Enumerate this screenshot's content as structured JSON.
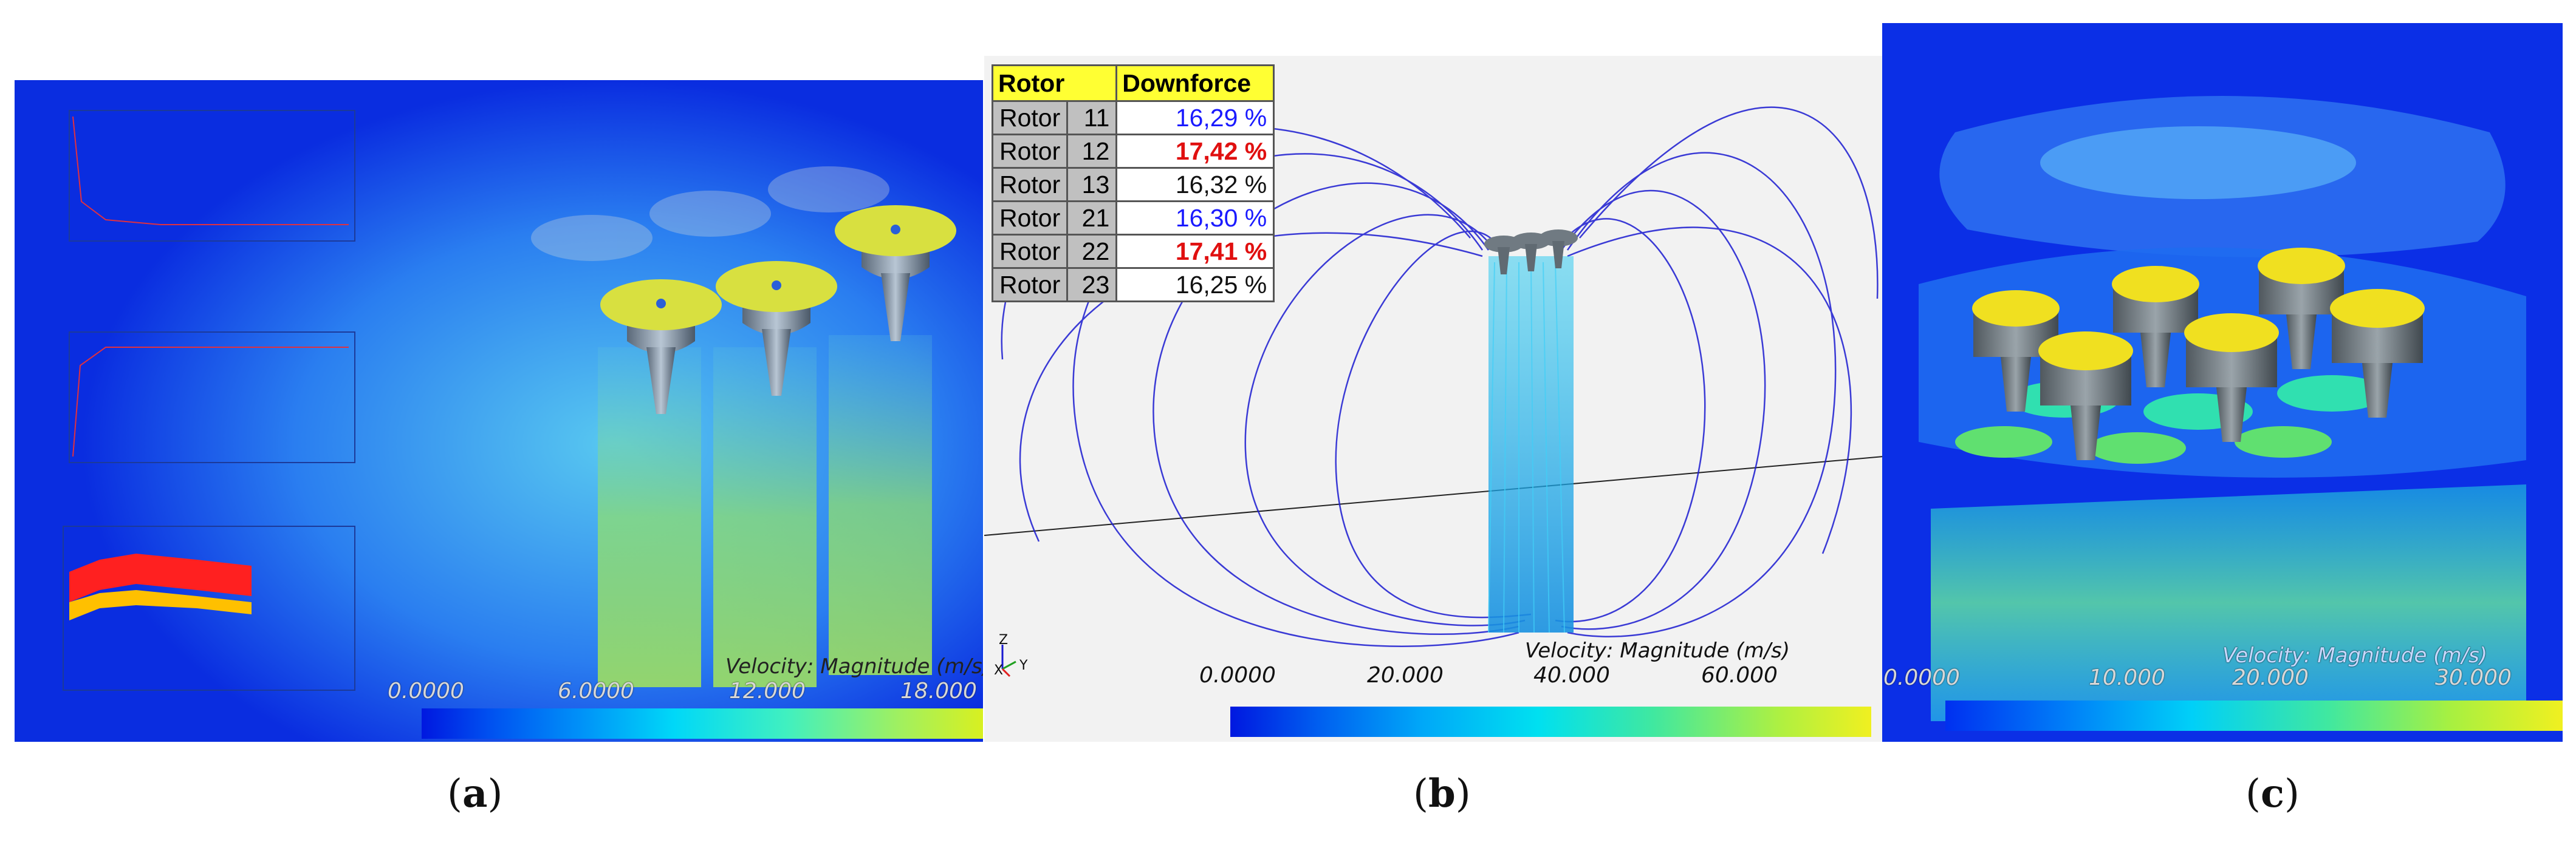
{
  "captions": {
    "a": "a",
    "b": "b",
    "c": "c"
  },
  "panel_a": {
    "legend_title": "Velocity: Magnitude (m/s)",
    "ticks": [
      "0.0000",
      "6.0000",
      "12.000",
      "18.000"
    ],
    "colors": {
      "bg": "#0a2de0",
      "jet": "#7fe070"
    }
  },
  "panel_b": {
    "legend_title": "Velocity: Magnitude (m/s)",
    "ticks": [
      "0.0000",
      "20.000",
      "40.000",
      "60.000"
    ],
    "table": {
      "headers": [
        "Rotor",
        "Downforce"
      ],
      "rows": [
        {
          "label": "Rotor",
          "id": "11",
          "value": "16,29 %",
          "style": "blue"
        },
        {
          "label": "Rotor",
          "id": "12",
          "value": "17,42 %",
          "style": "red"
        },
        {
          "label": "Rotor",
          "id": "13",
          "value": "16,32 %",
          "style": "black"
        },
        {
          "label": "Rotor",
          "id": "21",
          "value": "16,30 %",
          "style": "blue"
        },
        {
          "label": "Rotor",
          "id": "22",
          "value": "17,41 %",
          "style": "red"
        },
        {
          "label": "Rotor",
          "id": "23",
          "value": "16,25 %",
          "style": "black"
        }
      ]
    },
    "axes": {
      "z": "Z",
      "x": "X",
      "y": "Y"
    },
    "colors": {
      "streamline": "#1a1ad0",
      "jet": "#22c8f0"
    }
  },
  "panel_c": {
    "legend_title": "Velocity: Magnitude (m/s)",
    "ticks": [
      "0.0000",
      "10.000",
      "20.000",
      "30.000"
    ],
    "colors": {
      "bg": "#0b2fe6",
      "plane": "#1e6cf0",
      "rotor_top": "#f0e020"
    }
  }
}
